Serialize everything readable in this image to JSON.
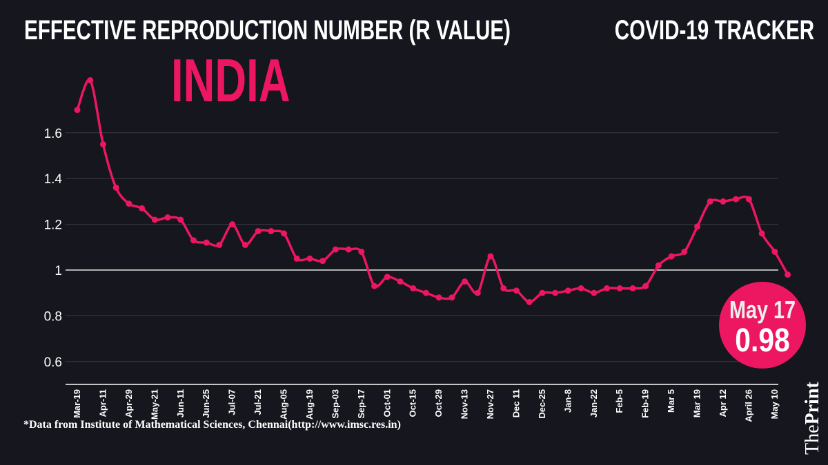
{
  "header": {
    "title": "EFFECTIVE REPRODUCTION NUMBER (R VALUE)",
    "country": "INDIA",
    "tracker": "COVID-19 TRACKER"
  },
  "callout": {
    "date": "May 17",
    "value": "0.98"
  },
  "footnote": "*Data from Institute of Mathematical Sciences, Chennai(http://www.imsc.res.in)",
  "logo": {
    "the": "The",
    "print": "Print"
  },
  "colors": {
    "background": "#15161e",
    "line": "#ec1760",
    "text": "#ffffff"
  },
  "chart_data": {
    "type": "line",
    "title": "EFFECTIVE REPRODUCTION NUMBER (R VALUE)",
    "xlabel": "",
    "ylabel": "",
    "ylim": [
      0.5,
      1.85
    ],
    "yticks": [
      "0.6",
      "0.8",
      "1",
      "1.2",
      "1.4",
      "1.6"
    ],
    "ytick_values": [
      0.6,
      0.8,
      1,
      1.2,
      1.4,
      1.6
    ],
    "grid": true,
    "xtick_labels": [
      "Mar-19",
      "Apr-11",
      "Apr-29",
      "May-21",
      "Jun-11",
      "Jun-25",
      "Jul-07",
      "Jul-21",
      "Aug-05",
      "Aug-19",
      "Sep-03",
      "Sep-17",
      "Oct-01",
      "Oct-15",
      "Oct-29",
      "Nov-13",
      "Nov-27",
      "Dec 11",
      "Dec-25",
      "Jan-8",
      "Jan-22",
      "Feb-5",
      "Feb-19",
      "Mar 5",
      "Mar 19",
      "Apr 12",
      "April 26",
      "May 10"
    ],
    "series": [
      {
        "values": [
          1.7,
          1.83,
          1.55,
          1.36,
          1.29,
          1.27,
          1.22,
          1.23,
          1.22,
          1.13,
          1.12,
          1.11,
          1.2,
          1.11,
          1.17,
          1.17,
          1.16,
          1.05,
          1.05,
          1.04,
          1.09,
          1.09,
          1.08,
          0.93,
          0.97,
          0.95,
          0.92,
          0.9,
          0.88,
          0.88,
          0.95,
          0.9,
          1.06,
          0.92,
          0.91,
          0.86,
          0.9,
          0.9,
          0.91,
          0.92,
          0.9,
          0.92,
          0.92,
          0.92,
          0.93,
          1.02,
          1.06,
          1.08,
          1.19,
          1.3,
          1.3,
          1.31,
          1.31,
          1.16,
          1.08,
          0.98
        ]
      }
    ]
  }
}
